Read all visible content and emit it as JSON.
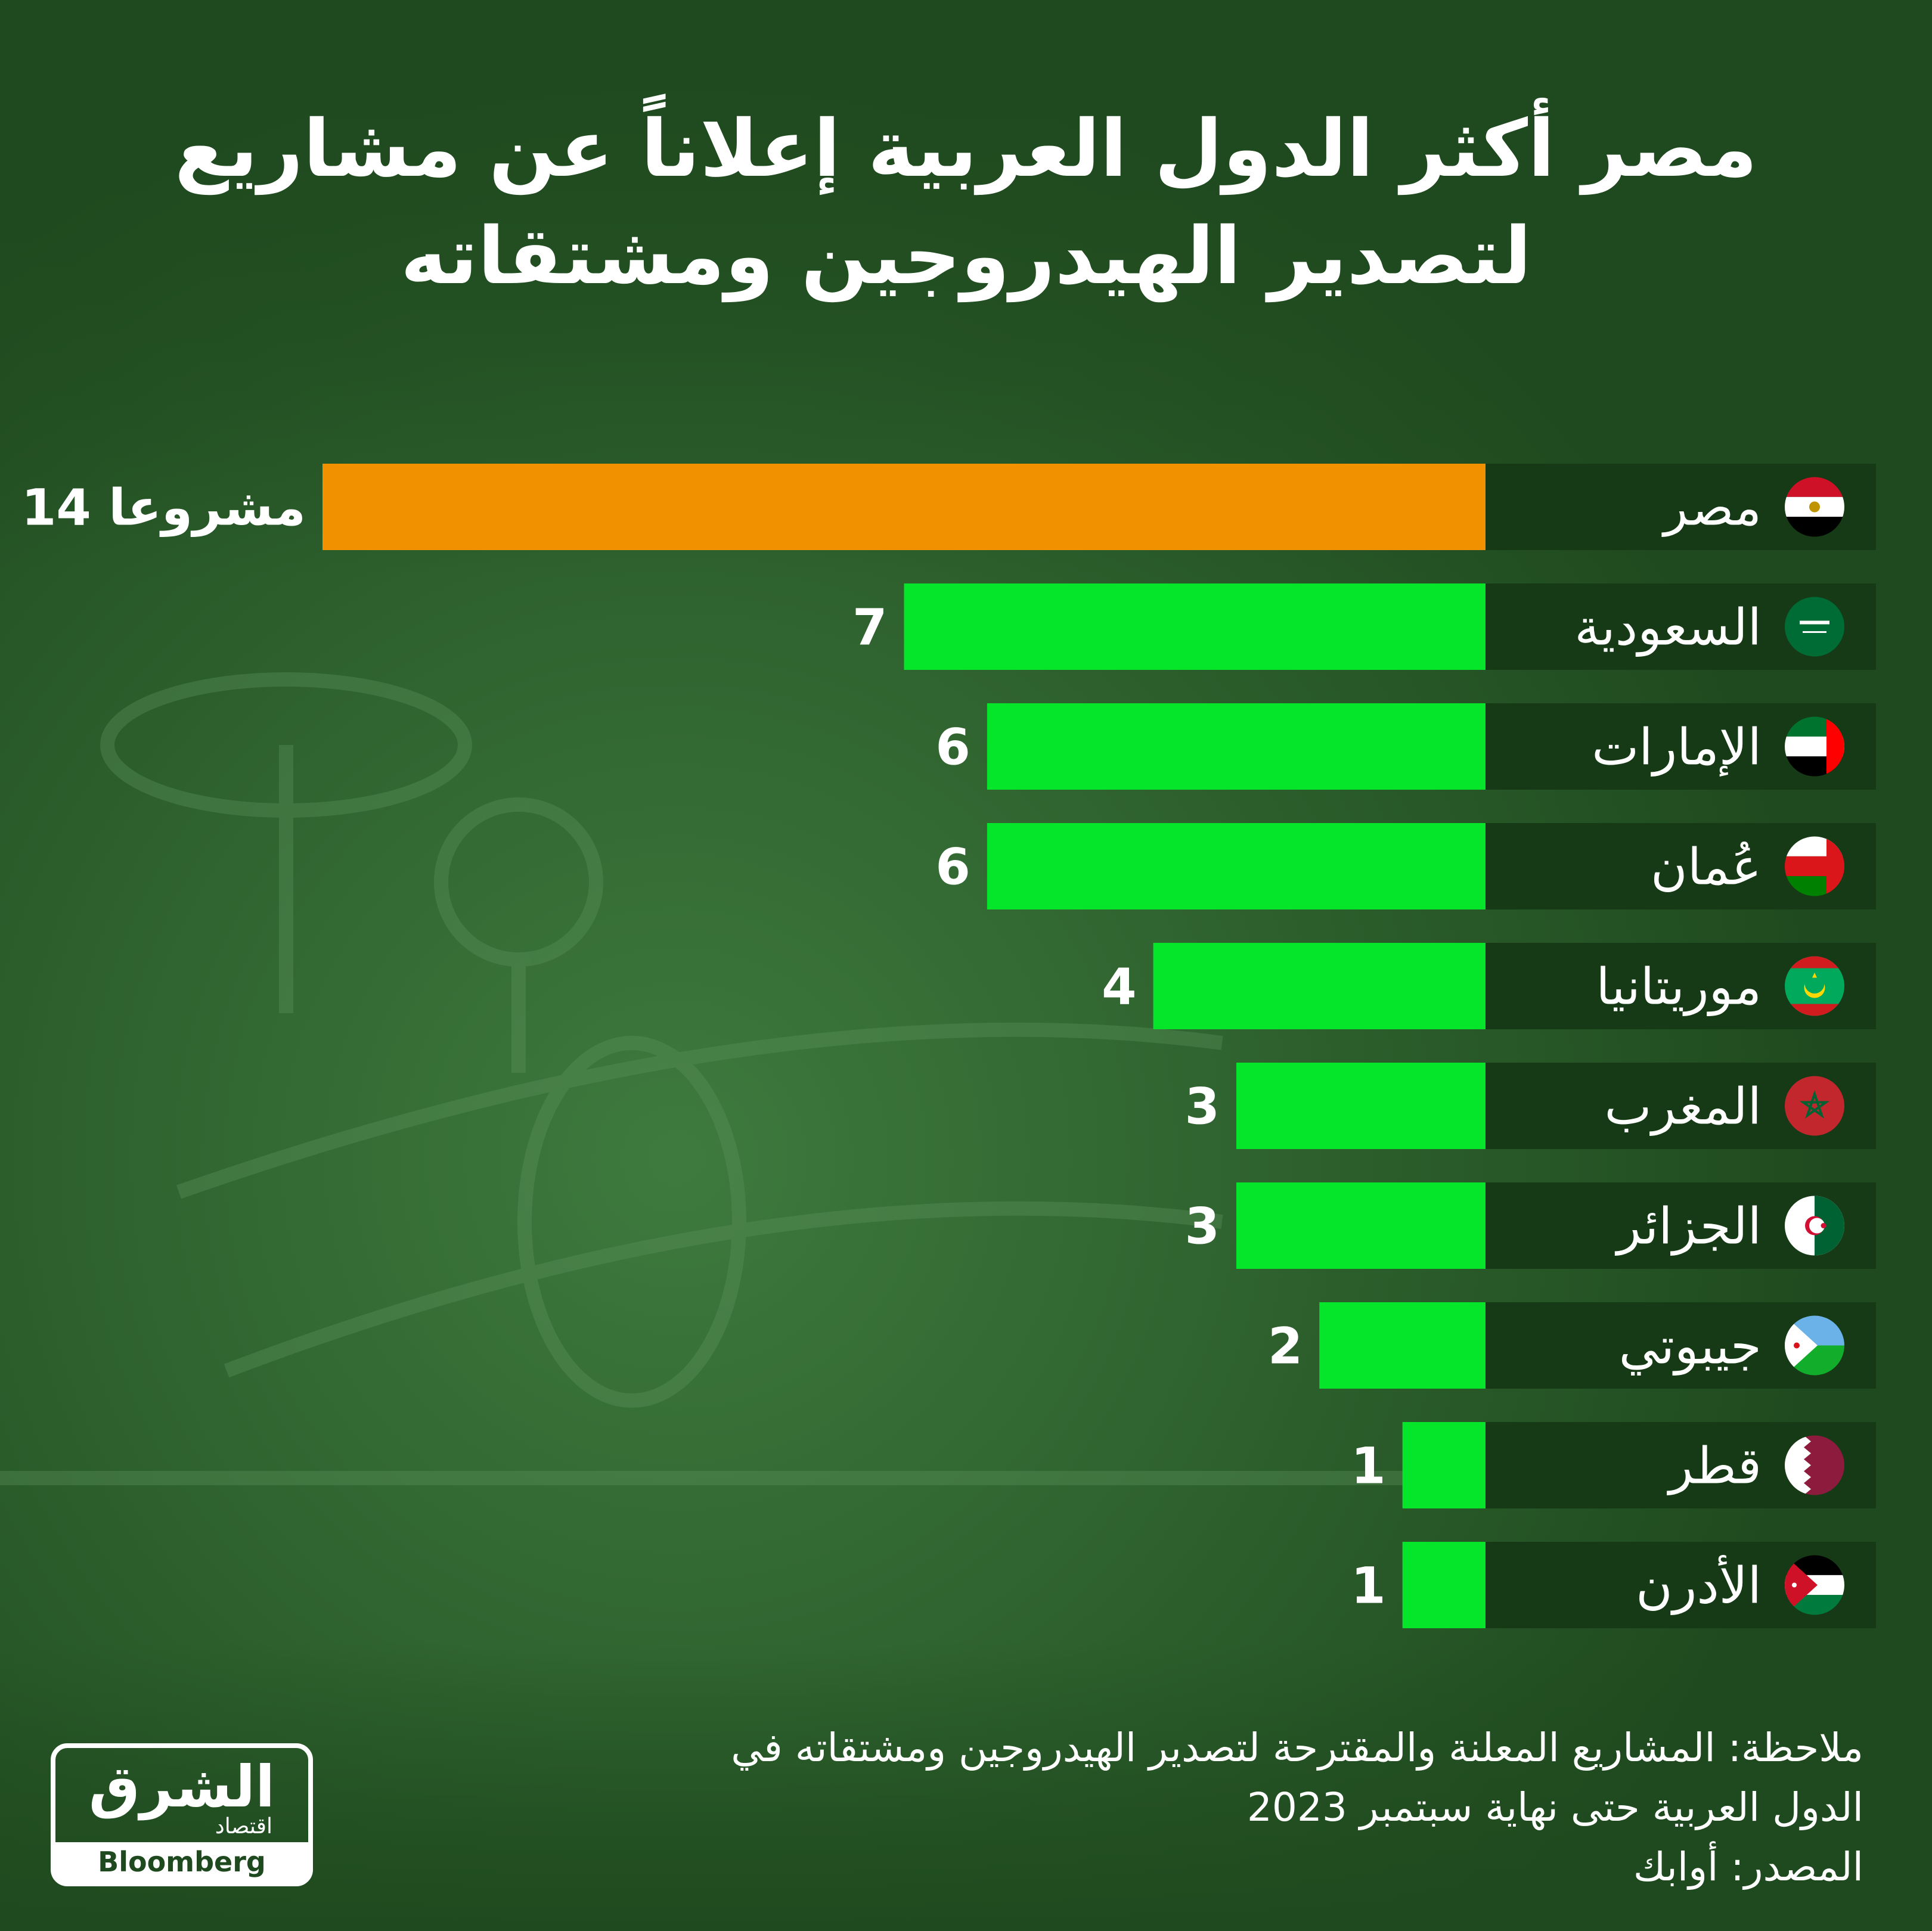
{
  "title_line1": "مصر أكثر الدول العربية إعلاناً عن مشاريع",
  "title_line2": "لتصدير الهيدروجين ومشتقاته",
  "colors": {
    "background": "#1f4a1f",
    "highlight_bar": "#f29100",
    "bar": "#05e62a",
    "label_panel": "#163a16",
    "text": "#ffffff"
  },
  "chart_data": {
    "type": "bar",
    "orientation": "horizontal",
    "categories": [
      "مصر",
      "السعودية",
      "الإمارات",
      "عُمان",
      "موريتانيا",
      "المغرب",
      "الجزائر",
      "جيبوتي",
      "قطر",
      "الأدرن"
    ],
    "values": [
      14,
      7,
      6,
      6,
      4,
      3,
      3,
      2,
      1,
      1
    ],
    "value_labels": [
      "14 مشروعا",
      "7",
      "6",
      "6",
      "4",
      "3",
      "3",
      "2",
      "1",
      "1"
    ],
    "highlight_index": 0,
    "flag_icons": [
      "egypt-flag-icon",
      "saudi-flag-icon",
      "uae-flag-icon",
      "oman-flag-icon",
      "mauritania-flag-icon",
      "morocco-flag-icon",
      "algeria-flag-icon",
      "djibouti-flag-icon",
      "qatar-flag-icon",
      "jordan-flag-icon"
    ]
  },
  "note_line1": "ملاحظة: المشاريع المعلنة والمقترحة لتصدير الهيدروجين ومشتقاته في",
  "note_line2": "الدول العربية حتى نهاية سبتمبر 2023",
  "source": "المصدر: أوابك",
  "logo": {
    "name": "الشرق",
    "subtitle": "اقتصاد",
    "partner": "Bloomberg"
  }
}
